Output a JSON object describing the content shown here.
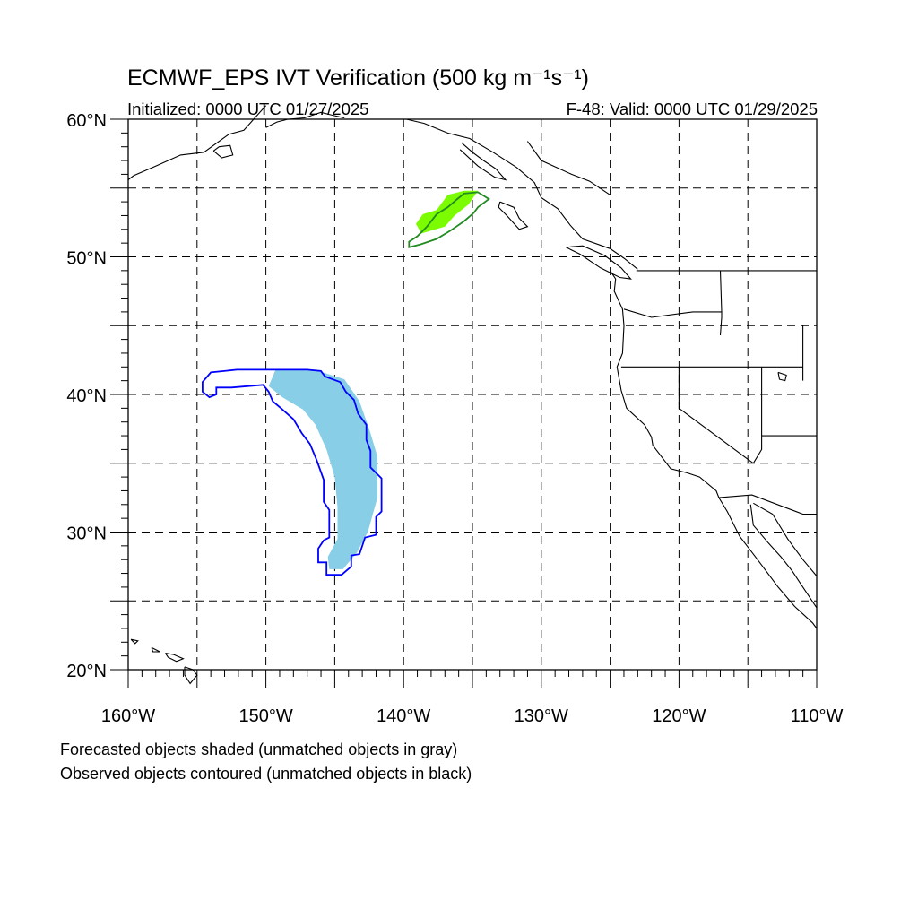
{
  "header": {
    "title": "ECMWF_EPS IVT Verification (500 kg m⁻¹s⁻¹)",
    "initialized": "Initialized: 0000 UTC 01/27/2025",
    "valid": "F-48: Valid: 0000 UTC 01/29/2025"
  },
  "map": {
    "projection": "cylindrical-equidistant",
    "lon_range": [
      -160,
      -110
    ],
    "lat_range": [
      20,
      60
    ],
    "lat_ticks": [
      {
        "value": 60,
        "label": "60°N"
      },
      {
        "value": 50,
        "label": "50°N"
      },
      {
        "value": 40,
        "label": "40°N"
      },
      {
        "value": 30,
        "label": "30°N"
      },
      {
        "value": 20,
        "label": "20°N"
      }
    ],
    "lon_ticks": [
      {
        "value": -160,
        "label": "160°W"
      },
      {
        "value": -150,
        "label": "150°W"
      },
      {
        "value": -140,
        "label": "140°W"
      },
      {
        "value": -130,
        "label": "130°W"
      },
      {
        "value": -120,
        "label": "120°W"
      },
      {
        "value": -110,
        "label": "110°W"
      }
    ],
    "gridlines": "dashed every 5°",
    "colors": {
      "forecast_object_1": "#87CEE6",
      "observed_object_1": "#0000FF",
      "forecast_object_2": "#7CFC00",
      "observed_object_2": "#228B22",
      "coastline": "#000000"
    },
    "objects": {
      "forecast_shaded": [
        {
          "id": "forecast-object-1",
          "color": "#87CEE6",
          "outline_lonlat": [
            [
              -149.3,
              41.8
            ],
            [
              -146.5,
              41.8
            ],
            [
              -144.3,
              41.1
            ],
            [
              -143.2,
              39.5
            ],
            [
              -142.5,
              37.5
            ],
            [
              -141.9,
              35.5
            ],
            [
              -141.9,
              32.5
            ],
            [
              -142.6,
              30.0
            ],
            [
              -143.4,
              28.5
            ],
            [
              -144.4,
              27.3
            ],
            [
              -145.4,
              27.3
            ],
            [
              -145.5,
              28.2
            ],
            [
              -144.8,
              29.5
            ],
            [
              -144.8,
              31.8
            ],
            [
              -145.0,
              34.0
            ],
            [
              -145.6,
              36.0
            ],
            [
              -146.4,
              37.8
            ],
            [
              -147.3,
              38.9
            ],
            [
              -148.8,
              39.8
            ],
            [
              -149.8,
              40.6
            ]
          ]
        },
        {
          "id": "forecast-object-2",
          "color": "#7CFC00",
          "outline_lonlat": [
            [
              -137.6,
              53.4
            ],
            [
              -136.8,
              54.5
            ],
            [
              -135.6,
              54.8
            ],
            [
              -134.6,
              54.8
            ],
            [
              -135.3,
              53.8
            ],
            [
              -136.3,
              53.0
            ],
            [
              -137.0,
              52.2
            ],
            [
              -138.7,
              51.7
            ],
            [
              -139.1,
              52.4
            ],
            [
              -138.6,
              53.1
            ]
          ]
        }
      ],
      "observed_contoured": [
        {
          "id": "observed-object-1",
          "color": "#0000FF",
          "outline_lonlat": [
            [
              -154.6,
              40.9
            ],
            [
              -154.0,
              41.6
            ],
            [
              -152.1,
              41.8
            ],
            [
              -147.0,
              41.8
            ],
            [
              -146.0,
              41.7
            ],
            [
              -145.7,
              41.3
            ],
            [
              -144.6,
              40.9
            ],
            [
              -144.2,
              40.2
            ],
            [
              -143.6,
              39.6
            ],
            [
              -143.3,
              38.6
            ],
            [
              -142.7,
              37.8
            ],
            [
              -142.7,
              36.7
            ],
            [
              -142.4,
              35.9
            ],
            [
              -142.4,
              34.7
            ],
            [
              -141.6,
              33.9
            ],
            [
              -141.6,
              31.5
            ],
            [
              -142.0,
              31.1
            ],
            [
              -142.0,
              29.8
            ],
            [
              -142.8,
              29.6
            ],
            [
              -143.2,
              28.4
            ],
            [
              -143.8,
              28.3
            ],
            [
              -143.8,
              27.5
            ],
            [
              -144.5,
              26.9
            ],
            [
              -145.6,
              26.9
            ],
            [
              -145.6,
              27.8
            ],
            [
              -146.2,
              27.8
            ],
            [
              -146.2,
              28.8
            ],
            [
              -145.8,
              29.4
            ],
            [
              -145.4,
              29.6
            ],
            [
              -145.4,
              31.6
            ],
            [
              -145.8,
              32.2
            ],
            [
              -145.8,
              33.8
            ],
            [
              -146.3,
              35.2
            ],
            [
              -146.8,
              36.4
            ],
            [
              -147.4,
              37.2
            ],
            [
              -148.0,
              38.2
            ],
            [
              -148.9,
              39.0
            ],
            [
              -149.5,
              39.5
            ],
            [
              -149.8,
              40.2
            ],
            [
              -150.2,
              40.7
            ],
            [
              -152.5,
              40.5
            ],
            [
              -153.6,
              40.5
            ],
            [
              -153.6,
              40.0
            ],
            [
              -154.1,
              39.8
            ],
            [
              -154.6,
              40.2
            ]
          ]
        },
        {
          "id": "observed-object-2",
          "color": "#228B22",
          "outline_lonlat": [
            [
              -139.6,
              50.7
            ],
            [
              -138.8,
              50.9
            ],
            [
              -137.6,
              51.3
            ],
            [
              -136.6,
              51.9
            ],
            [
              -135.6,
              52.6
            ],
            [
              -134.9,
              53.2
            ],
            [
              -134.6,
              53.6
            ],
            [
              -133.8,
              54.2
            ],
            [
              -134.6,
              54.7
            ],
            [
              -135.6,
              54.6
            ],
            [
              -136.1,
              54.2
            ],
            [
              -136.8,
              53.6
            ],
            [
              -137.6,
              53.1
            ],
            [
              -138.3,
              52.2
            ],
            [
              -139.0,
              51.5
            ],
            [
              -139.6,
              51.1
            ]
          ]
        }
      ]
    }
  },
  "footer": {
    "forecast_note": "Forecasted objects shaded (unmatched objects in gray)",
    "observed_note": "Observed objects contoured (unmatched objects in black)"
  }
}
